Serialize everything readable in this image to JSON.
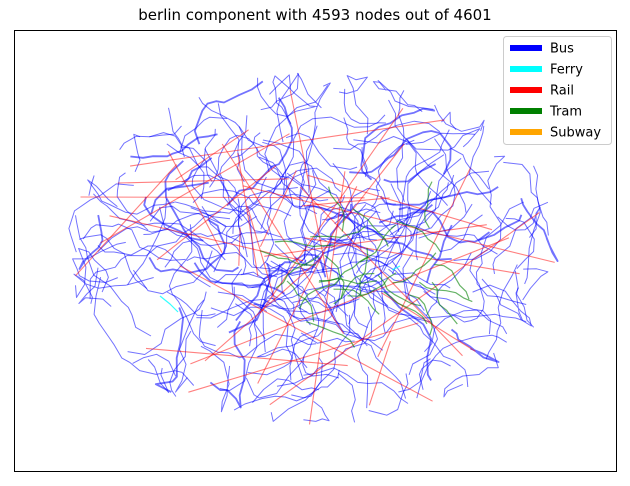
{
  "title": "berlin component with 4593 nodes out of 4601",
  "legend": [
    {
      "label": "Bus",
      "color": "#0000ff"
    },
    {
      "label": "Ferry",
      "color": "#00ffff"
    },
    {
      "label": "Rail",
      "color": "#ff0000"
    },
    {
      "label": "Tram",
      "color": "#008000"
    },
    {
      "label": "Subway",
      "color": "#ffa500"
    }
  ]
}
